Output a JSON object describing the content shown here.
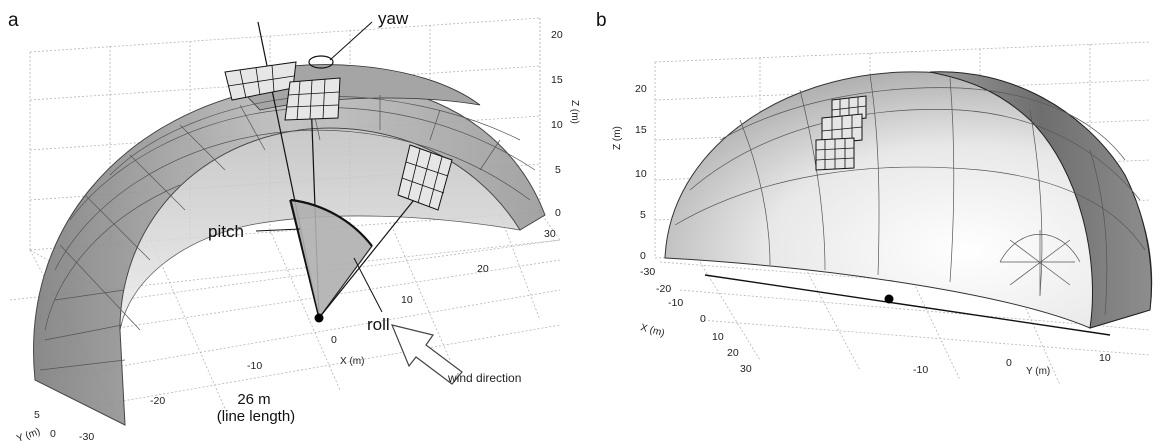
{
  "panel_a": {
    "letter": "a",
    "z_ticks": [
      "20",
      "15",
      "10",
      "5",
      "0"
    ],
    "z_label": "Z (m)",
    "x_ticks": [
      "30",
      "20",
      "10",
      "0",
      "-10",
      "-20",
      "-30"
    ],
    "x_label": "X (m)",
    "y_ticks": [
      "5",
      "0"
    ],
    "y_label": "Y (m)",
    "labels": {
      "yaw": "yaw",
      "pitch": "pitch",
      "roll": "roll",
      "line_length_value": "26 m",
      "line_length_caption": "(line length)",
      "wind": "wind direction"
    }
  },
  "panel_b": {
    "letter": "b",
    "z_ticks": [
      "20",
      "15",
      "10",
      "5",
      "0"
    ],
    "z_label": "Z (m)",
    "x_ticks": [
      "-30",
      "-20",
      "-10",
      "0",
      "10",
      "20",
      "30"
    ],
    "x_label": "X (m)",
    "y_ticks": [
      "-10",
      "0",
      "10"
    ],
    "y_label": "Y (m)"
  },
  "colors": {
    "dome_dark": "#8a8a8a",
    "dome_light": "#e4e4e4",
    "line": "#111111"
  }
}
